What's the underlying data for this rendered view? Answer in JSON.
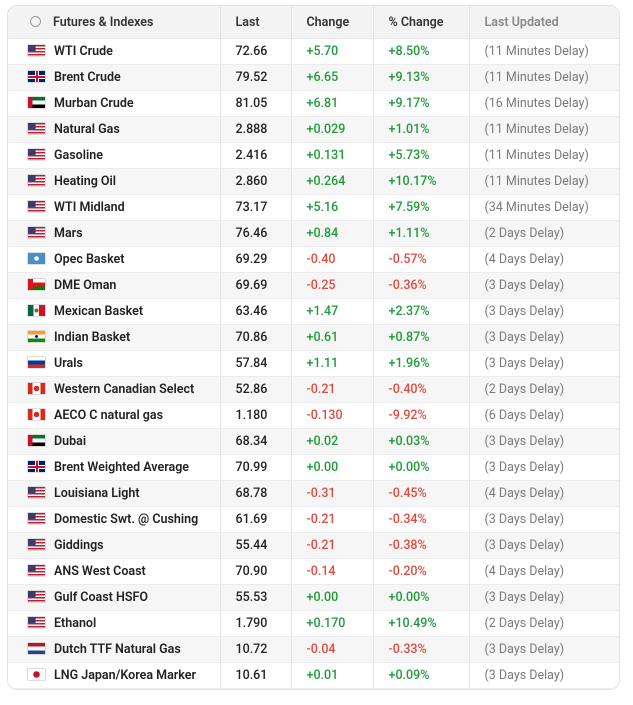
{
  "table": {
    "header": [
      "Futures & Indexes",
      "Last",
      "Change",
      "% Change",
      "Last Updated"
    ],
    "rows": [
      [
        "WTI Crude",
        "72.66",
        "+5.70",
        "+8.50%",
        "(11 Minutes Delay)"
      ],
      [
        "Brent Crude",
        "79.52",
        "+6.65",
        "+9.13%",
        "(11 Minutes Delay)"
      ],
      [
        "Murban Crude",
        "81.05",
        "+6.81",
        "+9.17%",
        "(16 Minutes Delay)"
      ],
      [
        "Natural Gas",
        "2.888",
        "+0.029",
        "+1.01%",
        "(11 Minutes Delay)"
      ],
      [
        "Gasoline",
        "2.416",
        "+0.131",
        "+5.73%",
        "(11 Minutes Delay)"
      ],
      [
        "Heating Oil",
        "2.860",
        "+0.264",
        "+10.17%",
        "(11 Minutes Delay)"
      ],
      [
        "WTI Midland",
        "73.17",
        "+5.16",
        "+7.59%",
        "(34 Minutes Delay)"
      ],
      [
        "Mars",
        "76.46",
        "+0.84",
        "+1.11%",
        "(2 Days Delay)"
      ],
      [
        "Opec Basket",
        "69.29",
        "-0.40",
        "-0.57%",
        "(4 Days Delay)"
      ],
      [
        "DME Oman",
        "69.69",
        "-0.25",
        "-0.36%",
        "(3 Days Delay)"
      ],
      [
        "Mexican Basket",
        "63.46",
        "+1.47",
        "+2.37%",
        "(3 Days Delay)"
      ],
      [
        "Indian Basket",
        "70.86",
        "+0.61",
        "+0.87%",
        "(3 Days Delay)"
      ],
      [
        "Urals",
        "57.84",
        "+1.11",
        "+1.96%",
        "(3 Days Delay)"
      ],
      [
        "Western Canadian Select",
        "52.86",
        "-0.21",
        "-0.40%",
        "(2 Days Delay)"
      ],
      [
        "AECO C natural gas",
        "1.180",
        "-0.130",
        "-9.92%",
        "(6 Days Delay)"
      ],
      [
        "Dubai",
        "68.34",
        "+0.02",
        "+0.03%",
        "(3 Days Delay)"
      ],
      [
        "Brent Weighted Average",
        "70.99",
        "+0.00",
        "+0.00%",
        "(3 Days Delay)"
      ],
      [
        "Louisiana Light",
        "68.78",
        "-0.31",
        "-0.45%",
        "(4 Days Delay)"
      ],
      [
        "Domestic Swt. @ Cushing",
        "61.69",
        "-0.21",
        "-0.34%",
        "(3 Days Delay)"
      ],
      [
        "Giddings",
        "55.44",
        "-0.21",
        "-0.38%",
        "(3 Days Delay)"
      ],
      [
        "ANS West Coast",
        "70.90",
        "-0.14",
        "-0.20%",
        "(4 Days Delay)"
      ],
      [
        "Gulf Coast HSFO",
        "55.53",
        "+0.00",
        "+0.00%",
        "(3 Days Delay)"
      ],
      [
        "Ethanol",
        "1.790",
        "+0.170",
        "+10.49%",
        "(2 Days Delay)"
      ],
      [
        "Dutch TTF Natural Gas",
        "10.72",
        "-0.04",
        "-0.33%",
        "(3 Days Delay)"
      ],
      [
        "LNG Japan/Korea Marker",
        "10.61",
        "+0.01",
        "+0.09%",
        "(3 Days Delay)"
      ]
    ]
  }
}
